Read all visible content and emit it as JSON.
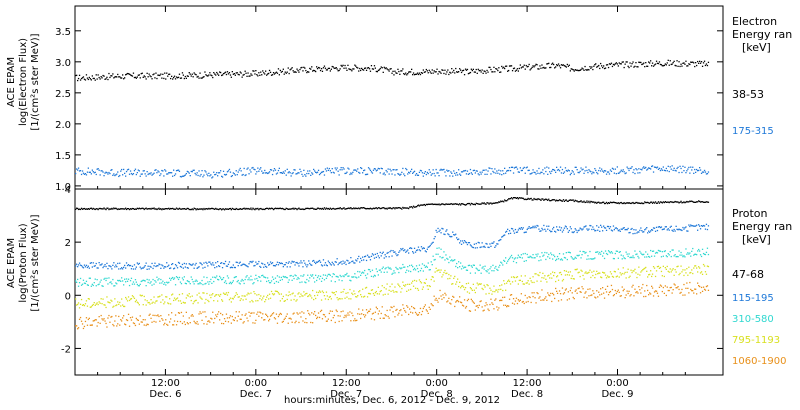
{
  "panels": [
    {
      "id": "electron",
      "ylabel_lines": [
        "ACE EPAM",
        "log(Electron Flux)",
        "[1/(cm²s ster MeV)]"
      ],
      "legend_title": [
        "Electron",
        "Energy ran",
        "[keV]"
      ],
      "channels": [
        {
          "label": "38-53",
          "color": "#000000"
        },
        {
          "label": "175-315",
          "color": "#1e78d8"
        }
      ]
    },
    {
      "id": "proton",
      "ylabel_lines": [
        "ACE EPAM",
        "log(Proton Flux)",
        "[1/(cm²s ster MeV)]"
      ],
      "legend_title": [
        "Proton",
        "Energy ran",
        "[keV]"
      ],
      "channels": [
        {
          "label": "47-68",
          "color": "#000000"
        },
        {
          "label": "115-195",
          "color": "#1e78d8"
        },
        {
          "label": "310-580",
          "color": "#30d8d0"
        },
        {
          "label": "795-1193",
          "color": "#d8e020"
        },
        {
          "label": "1060-1900",
          "color": "#e8901a"
        }
      ]
    }
  ],
  "xlabel": "hours:minutes, Dec.  6, 2012 - Dec.  9, 2012",
  "chart_data": [
    {
      "type": "scatter",
      "ylabel": "ACE EPAM log(Electron Flux) [1/(cm²s ster MeV)]",
      "ylim": [
        0.95,
        3.9
      ],
      "yticks": [
        1.0,
        1.5,
        2.0,
        2.5,
        3.0,
        3.5
      ],
      "ytick_labels": [
        "1.0",
        "1.5",
        "2.0",
        "2.5",
        "3.0",
        "3.5"
      ],
      "xlim_hours": [
        0,
        86
      ],
      "xlabel": "hours:minutes, Dec.  6, 2012 - Dec.  9, 2012",
      "x_ticks": [
        {
          "hour": 12,
          "time": "12:00",
          "date": "Dec. 6"
        },
        {
          "hour": 24,
          "time": "0:00",
          "date": "Dec. 7"
        },
        {
          "hour": 36,
          "time": "12:00",
          "date": "Dec. 7"
        },
        {
          "hour": 48,
          "time": "0:00",
          "date": "Dec. 8"
        },
        {
          "hour": 60,
          "time": "12:00",
          "date": "Dec. 8"
        },
        {
          "hour": 72,
          "time": "0:00",
          "date": "Dec. 9"
        }
      ],
      "series": [
        {
          "name": "38-53",
          "color": "#000000",
          "x": [
            0,
            6,
            12,
            18,
            24,
            30,
            33,
            36,
            40,
            42,
            46,
            48,
            52,
            54,
            58,
            60,
            64,
            66,
            70,
            74,
            78,
            82,
            84
          ],
          "y": [
            2.75,
            2.78,
            2.78,
            2.8,
            2.82,
            2.88,
            2.9,
            2.92,
            2.9,
            2.85,
            2.85,
            2.86,
            2.85,
            2.87,
            2.9,
            2.92,
            2.95,
            2.9,
            2.95,
            2.97,
            2.99,
            2.98,
            2.97
          ]
        },
        {
          "name": "175-315",
          "color": "#1e78d8",
          "x": [
            0,
            6,
            12,
            18,
            24,
            30,
            36,
            42,
            48,
            54,
            60,
            66,
            72,
            78,
            84
          ],
          "y": [
            1.25,
            1.22,
            1.22,
            1.2,
            1.25,
            1.22,
            1.25,
            1.24,
            1.22,
            1.24,
            1.26,
            1.25,
            1.26,
            1.28,
            1.25
          ]
        }
      ]
    },
    {
      "type": "scatter",
      "ylabel": "ACE EPAM log(Proton Flux) [1/(cm²s ster MeV)]",
      "ylim": [
        -3.0,
        4.0
      ],
      "yticks": [
        -2,
        0,
        2,
        4
      ],
      "ytick_labels": [
        "-2",
        "0",
        "2",
        "4"
      ],
      "xlim_hours": [
        0,
        86
      ],
      "series": [
        {
          "name": "47-68",
          "color": "#000000",
          "x": [
            0,
            10,
            20,
            30,
            38,
            44,
            46,
            48,
            52,
            56,
            58,
            62,
            66,
            70,
            74,
            78,
            84
          ],
          "y": [
            3.28,
            3.28,
            3.27,
            3.28,
            3.3,
            3.3,
            3.42,
            3.45,
            3.45,
            3.5,
            3.68,
            3.62,
            3.58,
            3.5,
            3.5,
            3.52,
            3.55
          ]
        },
        {
          "name": "115-195",
          "color": "#1e78d8",
          "x": [
            0,
            10,
            20,
            30,
            36,
            40,
            44,
            47,
            48,
            50,
            52,
            56,
            57,
            60,
            62,
            66,
            70,
            74,
            78,
            84
          ],
          "y": [
            1.15,
            1.12,
            1.18,
            1.2,
            1.3,
            1.5,
            1.7,
            1.75,
            2.5,
            2.3,
            1.9,
            1.95,
            2.4,
            2.5,
            2.55,
            2.5,
            2.55,
            2.45,
            2.5,
            2.6
          ]
        },
        {
          "name": "310-580",
          "color": "#30d8d0",
          "x": [
            0,
            10,
            20,
            30,
            36,
            40,
            44,
            47,
            48,
            50,
            52,
            56,
            57,
            60,
            64,
            70,
            76,
            84
          ],
          "y": [
            0.5,
            0.55,
            0.6,
            0.65,
            0.7,
            0.9,
            1.05,
            1.1,
            1.7,
            1.3,
            1.0,
            1.0,
            1.35,
            1.45,
            1.5,
            1.55,
            1.55,
            1.65
          ]
        },
        {
          "name": "795-1193",
          "color": "#d8e020",
          "x": [
            0,
            10,
            20,
            30,
            36,
            40,
            44,
            47,
            48,
            50,
            52,
            56,
            58,
            62,
            66,
            70,
            76,
            84
          ],
          "y": [
            -0.3,
            -0.15,
            -0.05,
            0.0,
            0.05,
            0.2,
            0.35,
            0.45,
            0.95,
            0.6,
            0.3,
            0.25,
            0.55,
            0.7,
            0.8,
            0.85,
            0.9,
            1.0
          ]
        },
        {
          "name": "1060-1900",
          "color": "#e8901a",
          "x": [
            0,
            10,
            20,
            30,
            36,
            40,
            44,
            47,
            48,
            50,
            52,
            56,
            58,
            62,
            66,
            70,
            76,
            84
          ],
          "y": [
            -1.0,
            -0.9,
            -0.8,
            -0.8,
            -0.75,
            -0.65,
            -0.55,
            -0.45,
            0.0,
            -0.15,
            -0.35,
            -0.35,
            -0.15,
            0.0,
            0.1,
            0.15,
            0.2,
            0.3
          ]
        }
      ]
    }
  ]
}
